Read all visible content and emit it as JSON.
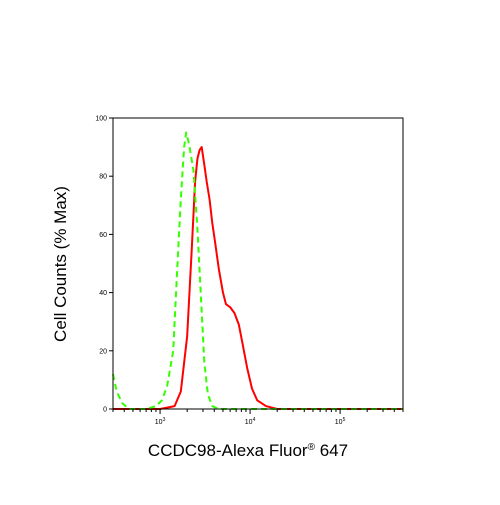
{
  "chart_data": {
    "type": "line",
    "xlabel": "CCDC98-Alexa Fluor",
    "xlabel_superscript": "®",
    "xlabel_suffix": " 647",
    "ylabel": "Cell Counts (% Max)",
    "x_scale": "log",
    "xlim": [
      300,
      500000
    ],
    "ylim": [
      0,
      100
    ],
    "grid": false,
    "y_ticks": [
      0,
      20,
      40,
      60,
      80,
      100
    ],
    "x_ticks": [
      {
        "value": 1000,
        "base": "10",
        "exp": "3"
      },
      {
        "value": 10000,
        "base": "10",
        "exp": "4"
      },
      {
        "value": 100000,
        "base": "10",
        "exp": "5"
      }
    ],
    "series": [
      {
        "color": "#ff0000",
        "style": "solid",
        "points": [
          [
            300,
            0
          ],
          [
            1000,
            0
          ],
          [
            1450,
            1
          ],
          [
            1700,
            6
          ],
          [
            2000,
            25
          ],
          [
            2250,
            55
          ],
          [
            2450,
            78
          ],
          [
            2600,
            86
          ],
          [
            2750,
            89
          ],
          [
            2900,
            90
          ],
          [
            3100,
            84
          ],
          [
            3300,
            78
          ],
          [
            3550,
            72
          ],
          [
            3800,
            64
          ],
          [
            4100,
            57
          ],
          [
            4500,
            48
          ],
          [
            5000,
            40
          ],
          [
            5400,
            36
          ],
          [
            6000,
            35
          ],
          [
            6700,
            33
          ],
          [
            7500,
            29
          ],
          [
            8300,
            22
          ],
          [
            9300,
            14
          ],
          [
            10500,
            7
          ],
          [
            12000,
            3
          ],
          [
            15000,
            1
          ],
          [
            20000,
            0
          ],
          [
            500000,
            0
          ]
        ]
      },
      {
        "color": "#33ff00",
        "style": "dashed",
        "points": [
          [
            300,
            12
          ],
          [
            330,
            6
          ],
          [
            380,
            2
          ],
          [
            450,
            0
          ],
          [
            700,
            0
          ],
          [
            900,
            1
          ],
          [
            1050,
            3
          ],
          [
            1200,
            8
          ],
          [
            1400,
            20
          ],
          [
            1550,
            48
          ],
          [
            1700,
            72
          ],
          [
            1850,
            90
          ],
          [
            1950,
            95
          ],
          [
            2100,
            91
          ],
          [
            2350,
            82
          ],
          [
            2600,
            62
          ],
          [
            2850,
            38
          ],
          [
            3100,
            16
          ],
          [
            3400,
            5
          ],
          [
            3800,
            1
          ],
          [
            4500,
            0
          ],
          [
            500000,
            0
          ]
        ]
      }
    ]
  }
}
